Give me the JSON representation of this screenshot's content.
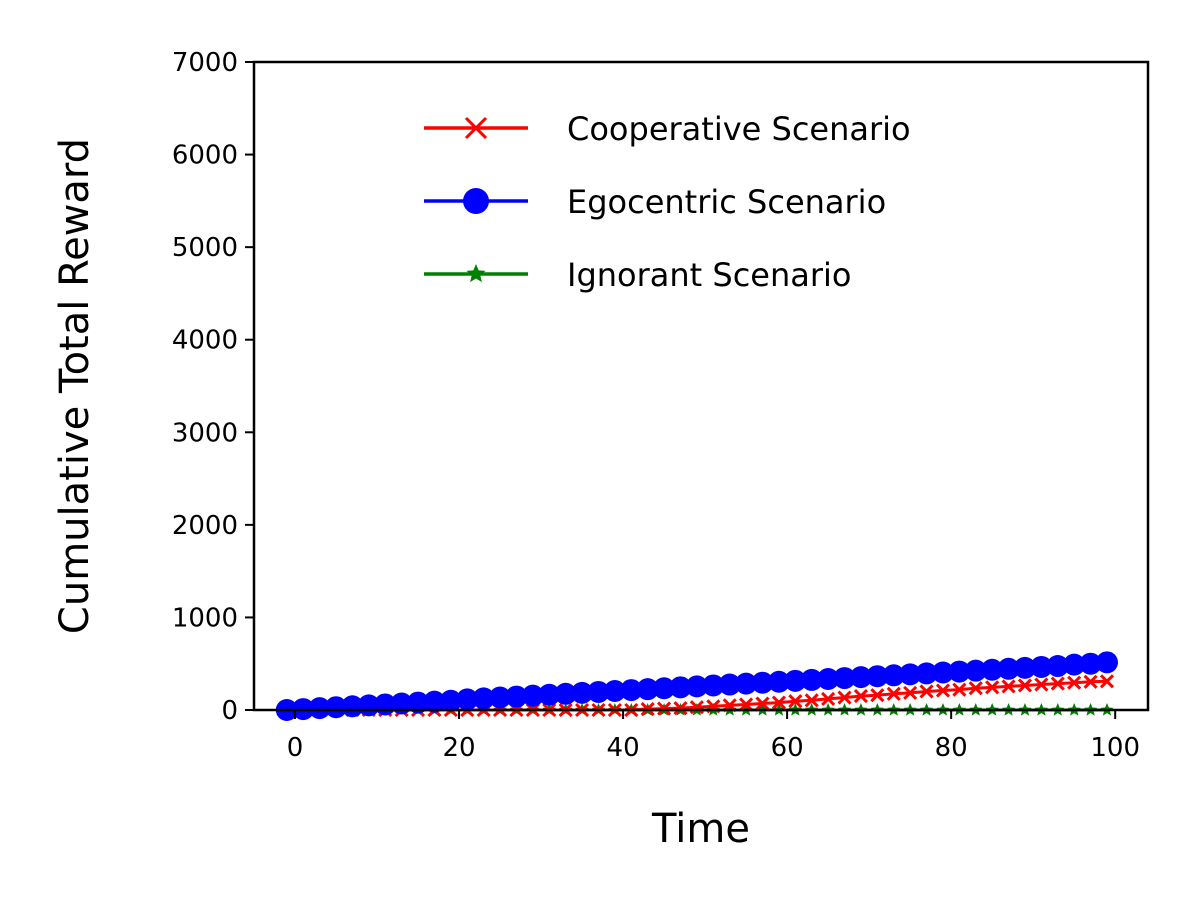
{
  "chart_data": {
    "type": "line",
    "xlabel": "Time",
    "ylabel": "Cumulative Total Reward",
    "xlim": [
      -5,
      104
    ],
    "ylim": [
      0,
      7000
    ],
    "xticks": [
      0,
      20,
      40,
      60,
      80,
      100
    ],
    "yticks": [
      0,
      1000,
      2000,
      3000,
      4000,
      5000,
      6000,
      7000
    ],
    "grid": false,
    "legend_position": "top-right",
    "x": [
      -1,
      1,
      3,
      5,
      7,
      9,
      11,
      13,
      15,
      17,
      19,
      21,
      23,
      25,
      27,
      29,
      31,
      33,
      35,
      37,
      39,
      41,
      43,
      45,
      47,
      49,
      51,
      53,
      55,
      57,
      59,
      61,
      63,
      65,
      67,
      69,
      71,
      73,
      75,
      77,
      79,
      81,
      83,
      85,
      87,
      89,
      91,
      93,
      95,
      97,
      99
    ],
    "series": [
      {
        "name": "Cooperative Scenario",
        "color": "#ff0000",
        "marker": "x",
        "values": [
          0,
          0,
          0,
          0,
          0,
          0,
          0,
          0,
          0,
          0,
          0,
          0,
          0,
          0,
          0,
          0,
          0,
          0,
          0,
          0,
          0,
          0,
          10,
          15,
          20,
          30,
          40,
          50,
          60,
          70,
          80,
          95,
          105,
          120,
          135,
          150,
          160,
          175,
          185,
          200,
          210,
          220,
          235,
          245,
          255,
          265,
          275,
          285,
          295,
          305,
          310
        ]
      },
      {
        "name": "Egocentric Scenario",
        "color": "#0000ff",
        "marker": "o",
        "values": [
          0,
          10,
          20,
          30,
          40,
          50,
          60,
          70,
          80,
          90,
          100,
          115,
          125,
          135,
          145,
          155,
          165,
          175,
          185,
          195,
          205,
          215,
          225,
          235,
          245,
          255,
          265,
          275,
          285,
          295,
          305,
          315,
          325,
          335,
          345,
          355,
          365,
          375,
          385,
          395,
          405,
          415,
          425,
          435,
          445,
          455,
          465,
          475,
          490,
          500,
          515
        ]
      },
      {
        "name": "Ignorant Scenario",
        "color": "#008000",
        "marker": "*",
        "values": [
          0,
          0,
          0,
          0,
          0,
          0,
          0,
          0,
          0,
          0,
          0,
          0,
          0,
          0,
          0,
          0,
          0,
          0,
          0,
          0,
          0,
          0,
          0,
          0,
          0,
          0,
          0,
          0,
          0,
          0,
          0,
          0,
          0,
          0,
          0,
          0,
          0,
          0,
          0,
          0,
          0,
          0,
          0,
          0,
          0,
          0,
          0,
          0,
          0,
          0,
          0
        ]
      }
    ]
  }
}
